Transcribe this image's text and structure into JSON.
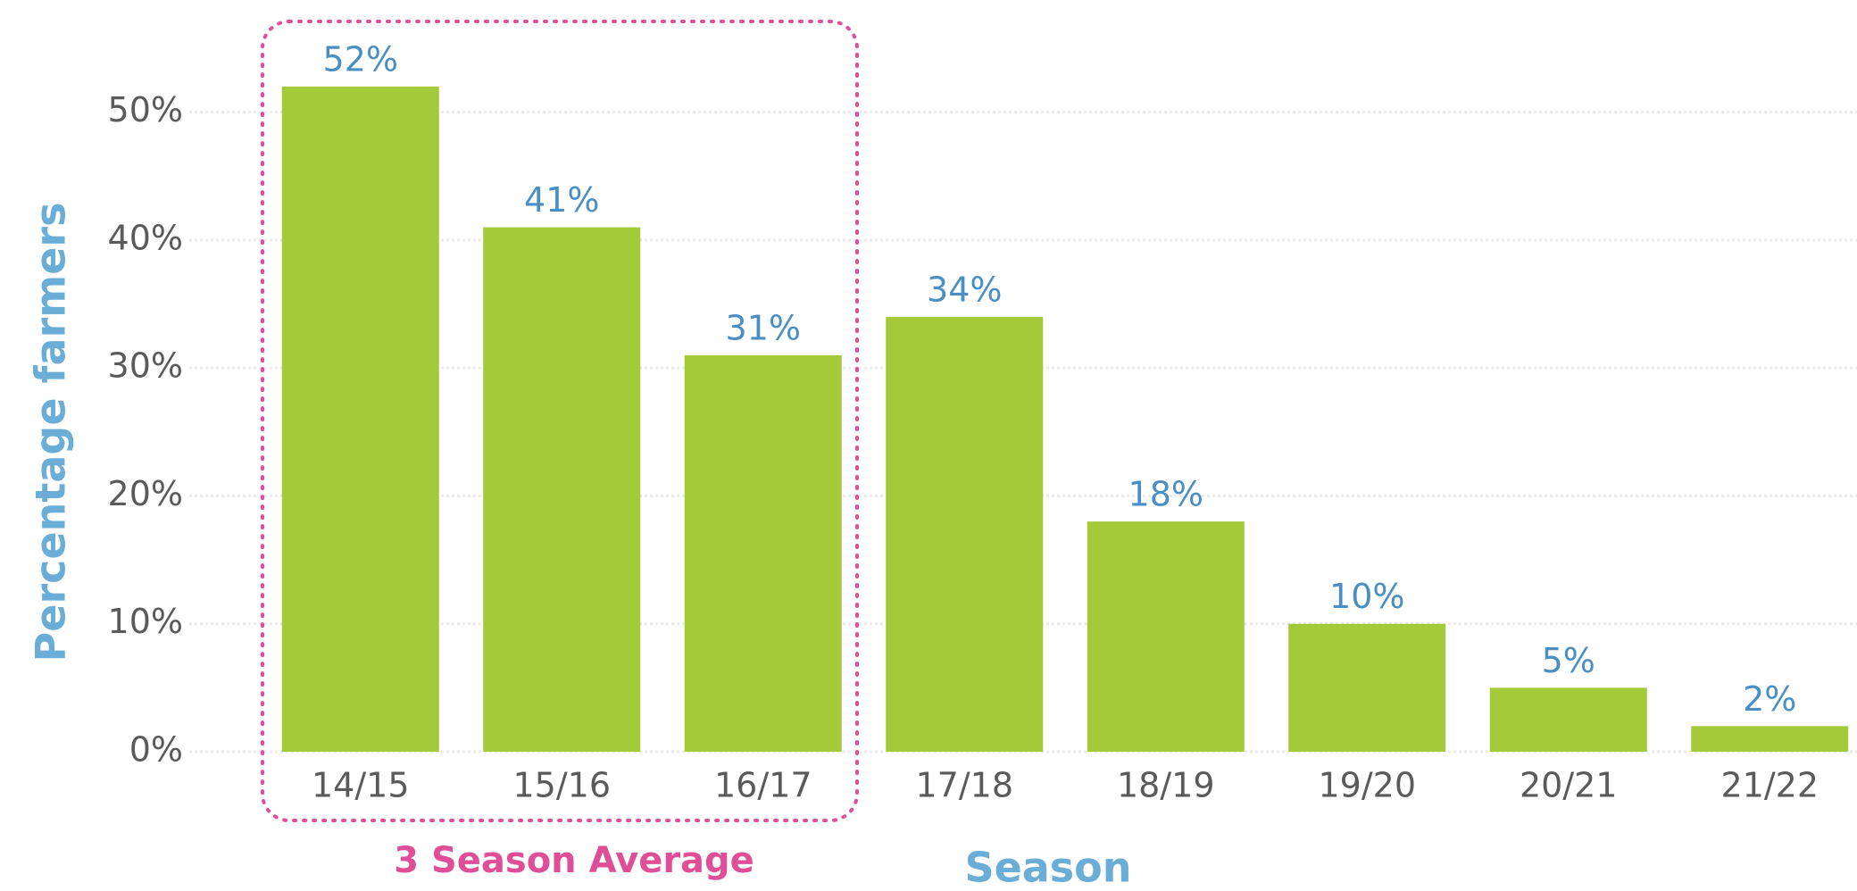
{
  "chart_data": {
    "type": "bar",
    "categories": [
      "14/15",
      "15/16",
      "16/17",
      "17/18",
      "18/19",
      "19/20",
      "20/21",
      "21/22"
    ],
    "values": [
      52,
      41,
      31,
      34,
      18,
      10,
      5,
      2
    ],
    "value_labels": [
      "52%",
      "41%",
      "31%",
      "34%",
      "18%",
      "10%",
      "5%",
      "2%"
    ],
    "color": "#a4c939",
    "ylim": [
      0,
      55
    ],
    "yticks": [
      {
        "value": 0,
        "label": "0%"
      },
      {
        "value": 10,
        "label": "10%"
      },
      {
        "value": 20,
        "label": "20%"
      },
      {
        "value": 30,
        "label": "30%"
      },
      {
        "value": 40,
        "label": "40%"
      },
      {
        "value": 50,
        "label": "50%"
      }
    ],
    "grid": true,
    "y_label": "Percentage farmers",
    "x_label": "Season",
    "annotation": "3 Season Average"
  }
}
